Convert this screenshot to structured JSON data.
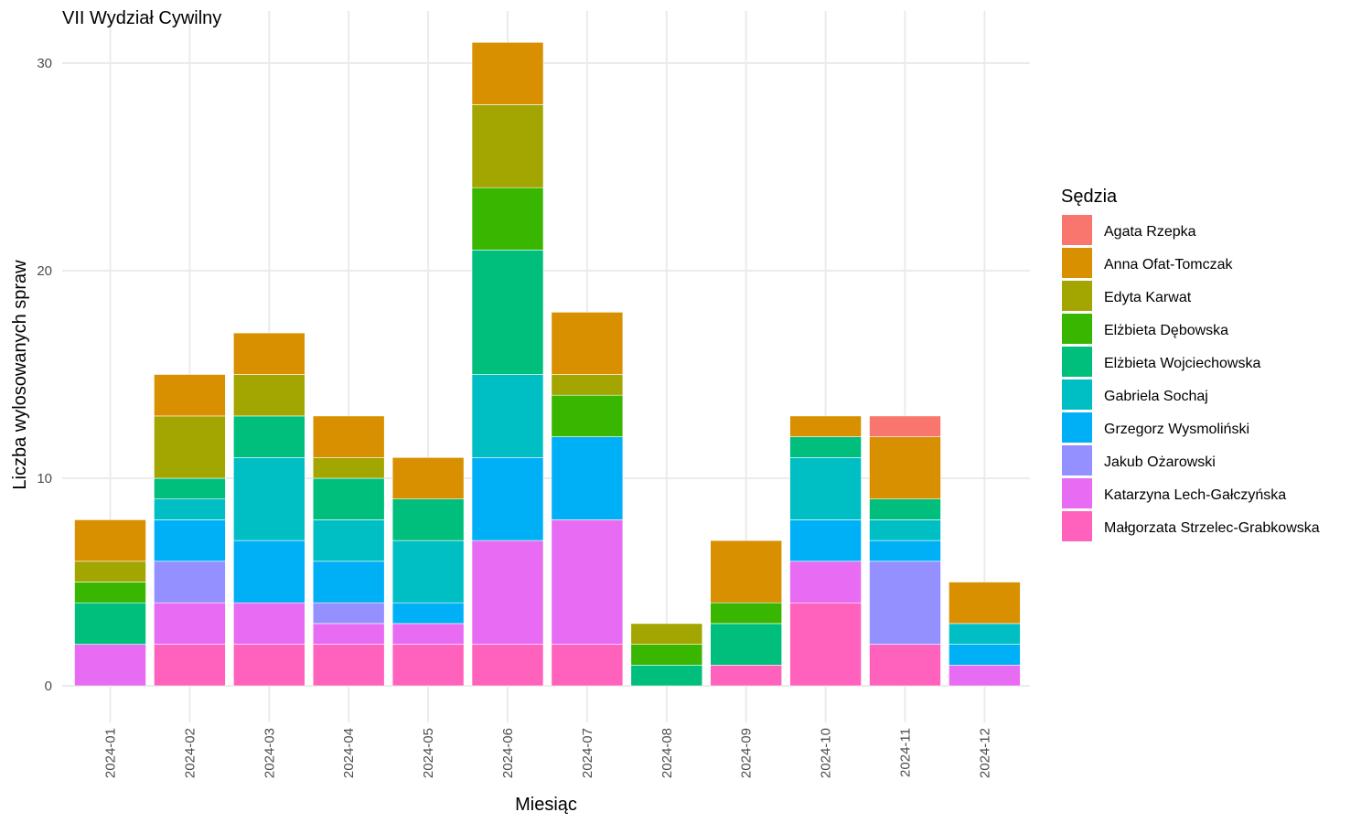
{
  "chart_data": {
    "type": "bar",
    "stacked": true,
    "title": "VII Wydział Cywilny",
    "xlabel": "Miesiąc",
    "ylabel": "Liczba wylosowanych spraw",
    "ylim": [
      0,
      31
    ],
    "yticks": [
      0,
      10,
      20,
      30
    ],
    "grid": true,
    "legend_title": "Sędzia",
    "legend_position": "right",
    "categories": [
      "2024-01",
      "2024-02",
      "2024-03",
      "2024-04",
      "2024-05",
      "2024-06",
      "2024-07",
      "2024-08",
      "2024-09",
      "2024-10",
      "2024-11",
      "2024-12"
    ],
    "series": [
      {
        "name": "Agata Rzepka",
        "color": "#F8766D",
        "values": [
          0,
          0,
          0,
          0,
          0,
          0,
          0,
          0,
          0,
          0,
          1,
          0
        ]
      },
      {
        "name": "Anna Ofat-Tomczak",
        "color": "#D89000",
        "values": [
          2,
          2,
          2,
          2,
          2,
          3,
          3,
          0,
          3,
          1,
          3,
          2
        ]
      },
      {
        "name": "Edyta Karwat",
        "color": "#A3A500",
        "values": [
          1,
          3,
          2,
          1,
          0,
          4,
          1,
          1,
          0,
          0,
          0,
          0
        ]
      },
      {
        "name": "Elżbieta Dębowska",
        "color": "#39B600",
        "values": [
          1,
          0,
          0,
          0,
          0,
          3,
          2,
          1,
          1,
          0,
          0,
          0
        ]
      },
      {
        "name": "Elżbieta Wojciechowska",
        "color": "#00BF7D",
        "values": [
          2,
          1,
          2,
          2,
          2,
          6,
          0,
          1,
          2,
          1,
          1,
          0
        ]
      },
      {
        "name": "Gabriela Sochaj",
        "color": "#00BFC4",
        "values": [
          0,
          1,
          4,
          2,
          3,
          4,
          0,
          0,
          0,
          3,
          1,
          1
        ]
      },
      {
        "name": "Grzegorz Wysmoliński",
        "color": "#00B0F6",
        "values": [
          0,
          2,
          3,
          2,
          1,
          4,
          4,
          0,
          0,
          2,
          1,
          1
        ]
      },
      {
        "name": "Jakub Ożarowski",
        "color": "#9590FF",
        "values": [
          0,
          2,
          0,
          1,
          0,
          0,
          0,
          0,
          0,
          0,
          4,
          0
        ]
      },
      {
        "name": "Katarzyna Lech-Gałczyńska",
        "color": "#E76BF3",
        "values": [
          2,
          2,
          2,
          1,
          1,
          5,
          6,
          0,
          0,
          2,
          0,
          1
        ]
      },
      {
        "name": "Małgorzata Strzelec-Grabkowska",
        "color": "#FF62BC",
        "values": [
          0,
          2,
          2,
          2,
          2,
          2,
          2,
          0,
          1,
          4,
          2,
          0
        ]
      }
    ]
  }
}
